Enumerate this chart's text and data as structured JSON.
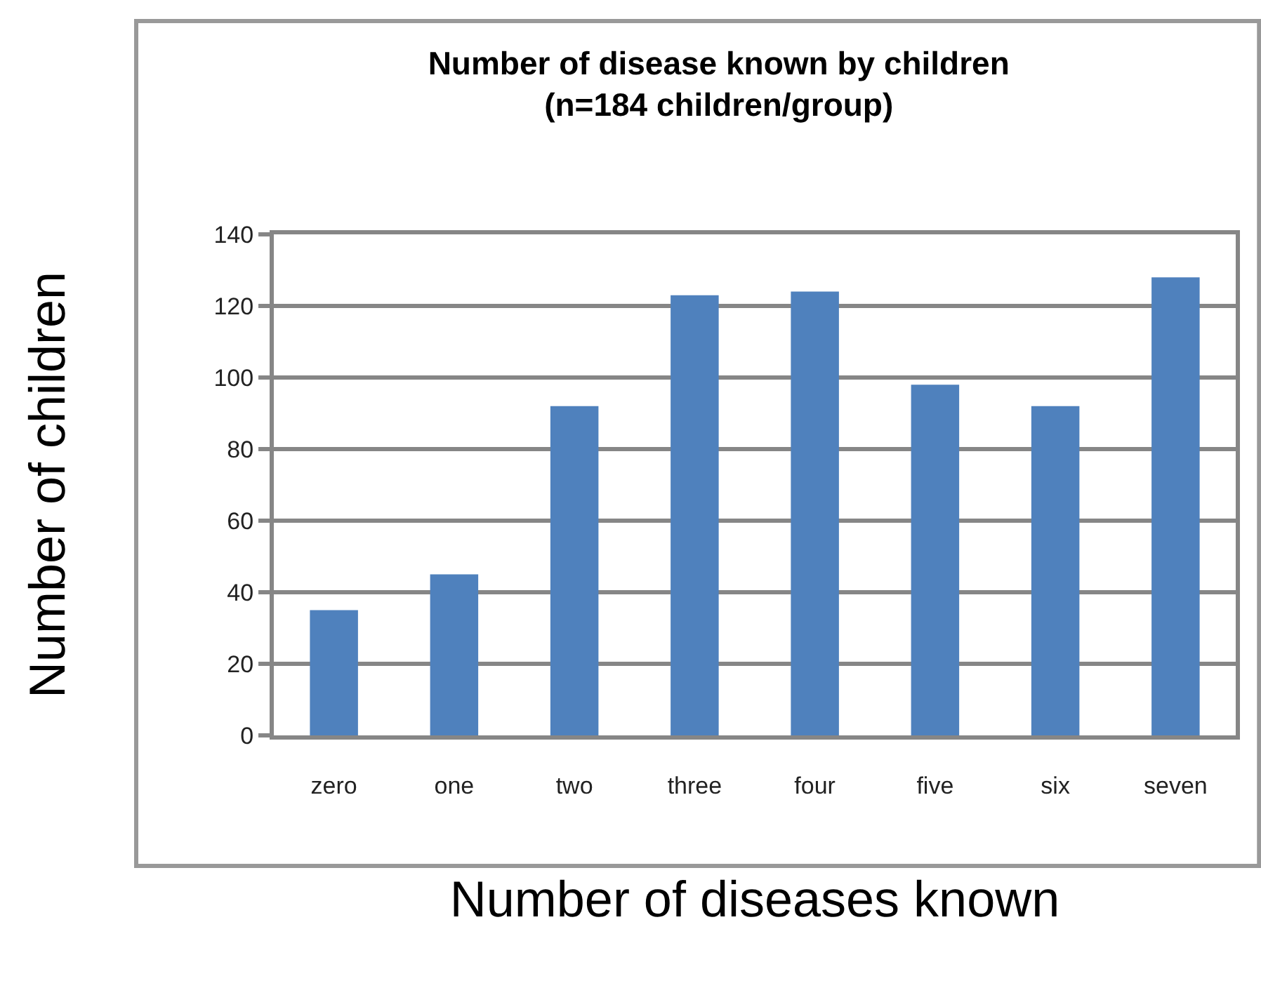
{
  "chart_data": {
    "type": "bar",
    "title": "Number of disease known by children\n(n=184 children/group)",
    "xlabel": "Number of diseases known",
    "ylabel": "Number of children",
    "categories": [
      "zero",
      "one",
      "two",
      "three",
      "four",
      "five",
      "six",
      "seven"
    ],
    "values": [
      35,
      45,
      92,
      123,
      124,
      98,
      92,
      128
    ],
    "color": "#4f81bd",
    "ylim": [
      0,
      140
    ],
    "yticks": [
      0,
      20,
      40,
      60,
      80,
      100,
      120,
      140
    ],
    "grid": "y",
    "legend": false
  }
}
